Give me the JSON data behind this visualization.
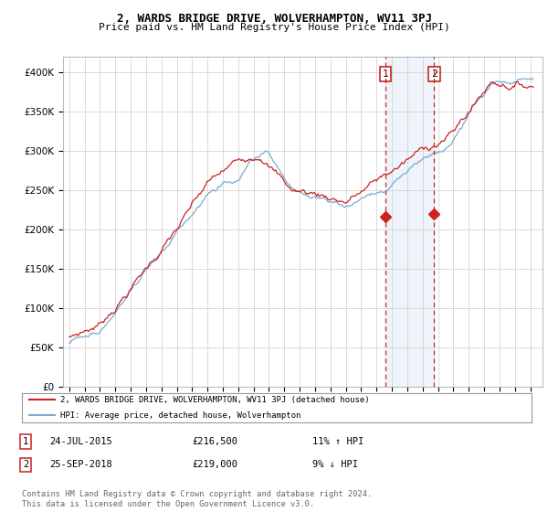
{
  "title": "2, WARDS BRIDGE DRIVE, WOLVERHAMPTON, WV11 3PJ",
  "subtitle": "Price paid vs. HM Land Registry's House Price Index (HPI)",
  "ylim": [
    0,
    420000
  ],
  "yticks": [
    0,
    50000,
    100000,
    150000,
    200000,
    250000,
    300000,
    350000,
    400000
  ],
  "ytick_labels": [
    "£0",
    "£50K",
    "£100K",
    "£150K",
    "£200K",
    "£250K",
    "£300K",
    "£350K",
    "£400K"
  ],
  "hpi_color": "#7aaad0",
  "price_color": "#cc2222",
  "t1_year": 2015.57,
  "t2_year": 2018.74,
  "t1_price": 216500,
  "t2_price": 219000,
  "transaction1": {
    "date": "24-JUL-2015",
    "price": 216500,
    "hpi_pct": "11% ↑ HPI"
  },
  "transaction2": {
    "date": "25-SEP-2018",
    "price": 219000,
    "hpi_pct": "9% ↓ HPI"
  },
  "legend_address": "2, WARDS BRIDGE DRIVE, WOLVERHAMPTON, WV11 3PJ (detached house)",
  "legend_hpi": "HPI: Average price, detached house, Wolverhampton",
  "footer": "Contains HM Land Registry data © Crown copyright and database right 2024.\nThis data is licensed under the Open Government Licence v3.0.",
  "background_color": "#ffffff",
  "grid_color": "#cccccc"
}
